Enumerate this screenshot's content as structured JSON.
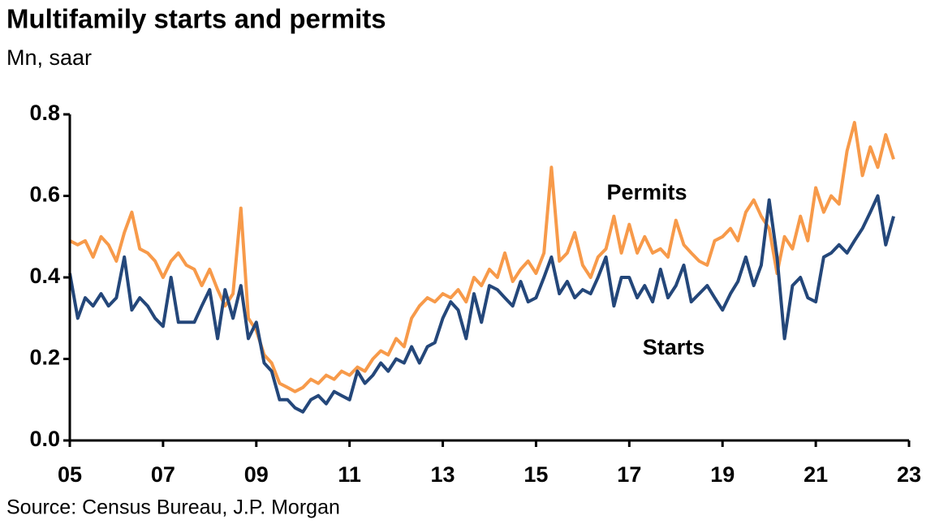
{
  "chart_data": {
    "type": "line",
    "title": "Multifamily starts and permits",
    "subtitle": "Mn, saar",
    "source": "Source: Census Bureau, J.P. Morgan",
    "annotations": [
      "Permits",
      "Starts"
    ],
    "x": [
      2005,
      2005.17,
      2005.33,
      2005.5,
      2005.67,
      2005.83,
      2006,
      2006.17,
      2006.33,
      2006.5,
      2006.67,
      2006.83,
      2007,
      2007.17,
      2007.33,
      2007.5,
      2007.67,
      2007.83,
      2008,
      2008.17,
      2008.33,
      2008.5,
      2008.67,
      2008.83,
      2009,
      2009.17,
      2009.33,
      2009.5,
      2009.67,
      2009.83,
      2010,
      2010.17,
      2010.33,
      2010.5,
      2010.67,
      2010.83,
      2011,
      2011.17,
      2011.33,
      2011.5,
      2011.67,
      2011.83,
      2012,
      2012.17,
      2012.33,
      2012.5,
      2012.67,
      2012.83,
      2013,
      2013.17,
      2013.33,
      2013.5,
      2013.67,
      2013.83,
      2014,
      2014.17,
      2014.33,
      2014.5,
      2014.67,
      2014.83,
      2015,
      2015.17,
      2015.33,
      2015.5,
      2015.67,
      2015.83,
      2016,
      2016.17,
      2016.33,
      2016.5,
      2016.67,
      2016.83,
      2017,
      2017.17,
      2017.33,
      2017.5,
      2017.67,
      2017.83,
      2018,
      2018.17,
      2018.33,
      2018.5,
      2018.67,
      2018.83,
      2019,
      2019.17,
      2019.33,
      2019.5,
      2019.67,
      2019.83,
      2020,
      2020.17,
      2020.33,
      2020.5,
      2020.67,
      2020.83,
      2021,
      2021.17,
      2021.33,
      2021.5,
      2021.67,
      2021.83,
      2022,
      2022.17,
      2022.33,
      2022.5,
      2022.67
    ],
    "series": [
      {
        "name": "Permits",
        "color": "#f79a4a",
        "values": [
          0.49,
          0.48,
          0.49,
          0.45,
          0.5,
          0.48,
          0.44,
          0.51,
          0.56,
          0.47,
          0.46,
          0.44,
          0.4,
          0.44,
          0.46,
          0.43,
          0.42,
          0.38,
          0.42,
          0.37,
          0.33,
          0.36,
          0.57,
          0.3,
          0.27,
          0.21,
          0.19,
          0.14,
          0.13,
          0.12,
          0.13,
          0.15,
          0.14,
          0.16,
          0.15,
          0.17,
          0.16,
          0.18,
          0.17,
          0.2,
          0.22,
          0.21,
          0.25,
          0.23,
          0.3,
          0.33,
          0.35,
          0.34,
          0.36,
          0.35,
          0.37,
          0.34,
          0.4,
          0.38,
          0.42,
          0.4,
          0.46,
          0.39,
          0.42,
          0.44,
          0.41,
          0.46,
          0.67,
          0.44,
          0.46,
          0.51,
          0.43,
          0.4,
          0.45,
          0.47,
          0.55,
          0.46,
          0.53,
          0.46,
          0.5,
          0.46,
          0.47,
          0.45,
          0.54,
          0.48,
          0.46,
          0.44,
          0.43,
          0.49,
          0.5,
          0.52,
          0.49,
          0.56,
          0.59,
          0.55,
          0.52,
          0.41,
          0.5,
          0.47,
          0.55,
          0.49,
          0.62,
          0.56,
          0.6,
          0.58,
          0.71,
          0.78,
          0.65,
          0.72,
          0.67,
          0.75,
          0.69
        ]
      },
      {
        "name": "Starts",
        "color": "#24477a",
        "values": [
          0.41,
          0.3,
          0.35,
          0.33,
          0.36,
          0.33,
          0.35,
          0.45,
          0.32,
          0.35,
          0.33,
          0.3,
          0.28,
          0.4,
          0.29,
          0.29,
          0.29,
          0.33,
          0.37,
          0.25,
          0.37,
          0.3,
          0.38,
          0.25,
          0.29,
          0.19,
          0.17,
          0.1,
          0.1,
          0.08,
          0.07,
          0.1,
          0.11,
          0.09,
          0.12,
          0.11,
          0.1,
          0.17,
          0.14,
          0.16,
          0.19,
          0.17,
          0.2,
          0.19,
          0.23,
          0.19,
          0.23,
          0.24,
          0.3,
          0.34,
          0.32,
          0.25,
          0.36,
          0.29,
          0.38,
          0.37,
          0.35,
          0.33,
          0.39,
          0.34,
          0.35,
          0.4,
          0.45,
          0.36,
          0.39,
          0.35,
          0.37,
          0.36,
          0.4,
          0.45,
          0.33,
          0.4,
          0.4,
          0.35,
          0.38,
          0.34,
          0.42,
          0.35,
          0.38,
          0.43,
          0.34,
          0.36,
          0.38,
          0.35,
          0.32,
          0.36,
          0.39,
          0.45,
          0.38,
          0.43,
          0.59,
          0.45,
          0.25,
          0.38,
          0.4,
          0.35,
          0.34,
          0.45,
          0.46,
          0.48,
          0.46,
          0.49,
          0.52,
          0.56,
          0.6,
          0.48,
          0.55
        ]
      }
    ],
    "xlim": [
      2005,
      2023
    ],
    "xticks": [
      {
        "value": 2005,
        "label": "05"
      },
      {
        "value": 2007,
        "label": "07"
      },
      {
        "value": 2009,
        "label": "09"
      },
      {
        "value": 2011,
        "label": "11"
      },
      {
        "value": 2013,
        "label": "13"
      },
      {
        "value": 2015,
        "label": "15"
      },
      {
        "value": 2017,
        "label": "17"
      },
      {
        "value": 2019,
        "label": "19"
      },
      {
        "value": 2021,
        "label": "21"
      },
      {
        "value": 2023,
        "label": "23"
      }
    ],
    "ylim": [
      0,
      0.8
    ],
    "yticks": [
      {
        "value": 0,
        "label": "0.0"
      },
      0.2,
      0.4,
      0.6,
      0.8
    ]
  }
}
